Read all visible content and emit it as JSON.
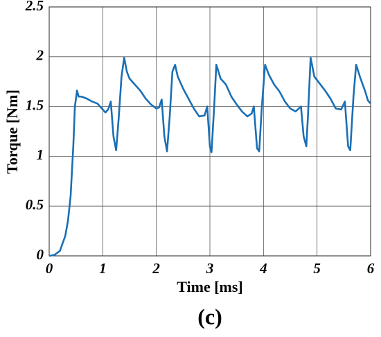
{
  "chart_data": {
    "type": "line",
    "x_label": "Time [ms]",
    "y_label": "Torque [Nm]",
    "caption": "(c)",
    "xlim": [
      0,
      6
    ],
    "ylim": [
      0,
      2.5
    ],
    "xticks": [
      0,
      1,
      2,
      3,
      4,
      5,
      6
    ],
    "yticks": [
      0,
      0.5,
      1,
      1.5,
      2,
      2.5
    ],
    "grid": true,
    "x": [
      0,
      0.1,
      0.2,
      0.3,
      0.35,
      0.4,
      0.45,
      0.48,
      0.52,
      0.55,
      0.6,
      0.7,
      0.8,
      0.9,
      1.0,
      1.05,
      1.1,
      1.15,
      1.2,
      1.25,
      1.3,
      1.35,
      1.4,
      1.45,
      1.5,
      1.6,
      1.7,
      1.8,
      1.9,
      2.0,
      2.05,
      2.1,
      2.15,
      2.2,
      2.25,
      2.3,
      2.35,
      2.4,
      2.5,
      2.6,
      2.7,
      2.8,
      2.9,
      2.95,
      3.0,
      3.03,
      3.08,
      3.12,
      3.2,
      3.3,
      3.4,
      3.5,
      3.6,
      3.7,
      3.78,
      3.82,
      3.88,
      3.92,
      3.97,
      4.03,
      4.1,
      4.2,
      4.3,
      4.4,
      4.5,
      4.6,
      4.7,
      4.75,
      4.8,
      4.83,
      4.88,
      4.95,
      5.05,
      5.15,
      5.25,
      5.35,
      5.45,
      5.52,
      5.58,
      5.62,
      5.68,
      5.73,
      5.8,
      5.9,
      5.95,
      6.0
    ],
    "series": [
      {
        "name": "Torque",
        "color": "#1a6fb5",
        "values": [
          0,
          0.01,
          0.05,
          0.2,
          0.35,
          0.6,
          1.1,
          1.5,
          1.66,
          1.6,
          1.6,
          1.58,
          1.55,
          1.53,
          1.47,
          1.44,
          1.47,
          1.55,
          1.2,
          1.06,
          1.4,
          1.8,
          1.99,
          1.85,
          1.78,
          1.72,
          1.66,
          1.58,
          1.52,
          1.48,
          1.49,
          1.57,
          1.2,
          1.05,
          1.4,
          1.85,
          1.92,
          1.8,
          1.68,
          1.58,
          1.48,
          1.4,
          1.41,
          1.5,
          1.1,
          1.04,
          1.5,
          1.92,
          1.78,
          1.72,
          1.6,
          1.52,
          1.45,
          1.4,
          1.43,
          1.5,
          1.08,
          1.05,
          1.5,
          1.92,
          1.82,
          1.72,
          1.65,
          1.55,
          1.48,
          1.45,
          1.5,
          1.2,
          1.1,
          1.4,
          1.99,
          1.8,
          1.73,
          1.66,
          1.58,
          1.48,
          1.47,
          1.55,
          1.1,
          1.06,
          1.6,
          1.92,
          1.8,
          1.65,
          1.56,
          1.53
        ]
      }
    ]
  }
}
